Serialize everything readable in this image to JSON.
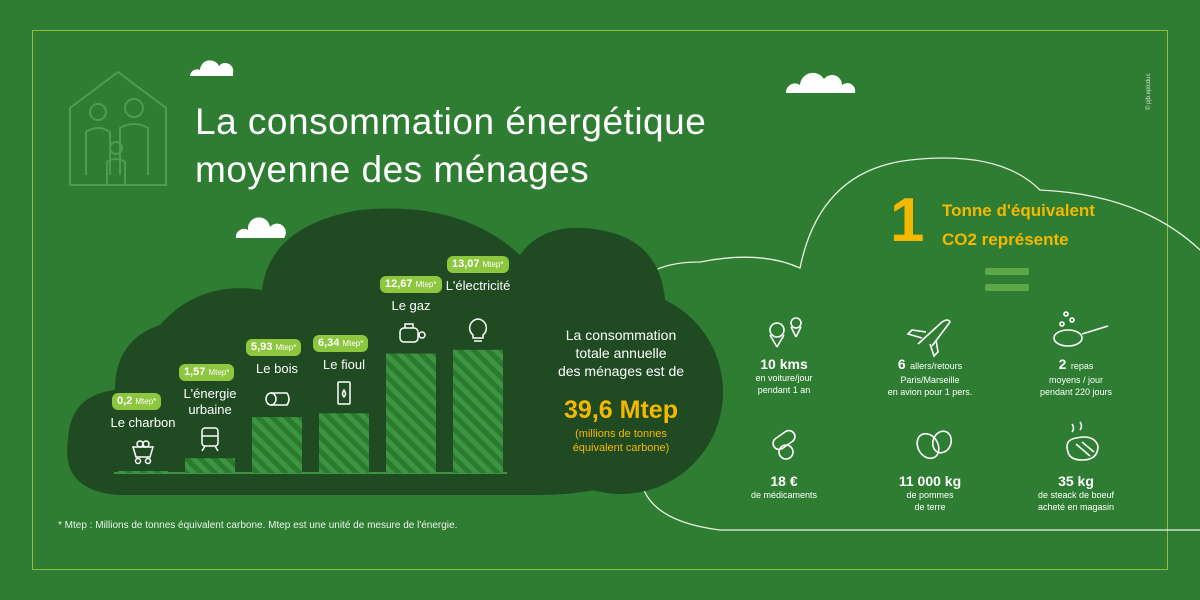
{
  "title": {
    "line1": "La consommation énergétique",
    "line2": "moyenne des ménages"
  },
  "copyright": "© pjb.epicduc",
  "chart_data": {
    "type": "bar",
    "categories": [
      "Le charbon",
      "L'énergie urbaine",
      "Le bois",
      "Le fioul",
      "Le gaz",
      "L'électricité"
    ],
    "values": [
      0.2,
      1.57,
      5.93,
      6.34,
      12.67,
      13.07
    ],
    "value_labels": [
      "0,2",
      "1,57",
      "5,93",
      "6,34",
      "12,67",
      "13,07"
    ],
    "unit_label": "Mtep*",
    "title": "",
    "xlabel": "",
    "ylabel": "",
    "ylim": [
      0,
      14
    ],
    "grid": false,
    "legend": "none",
    "icons": [
      "coal-cart-icon",
      "tram-icon",
      "log-icon",
      "oil-barrel-icon",
      "gas-tank-icon",
      "light-bulb-icon"
    ]
  },
  "total": {
    "text_line1": "La consommation",
    "text_line2": "totale annuelle",
    "text_line3": "des ménages est de",
    "value": "39,6 Mtep",
    "sub_line1": "(millions de tonnes",
    "sub_line2": "équivalent carbone)"
  },
  "co2": {
    "number": "1",
    "title_line1": "Tonne d'équivalent",
    "title_line2": "CO2 représente",
    "items": [
      {
        "icon": "map-pin-icon",
        "value": "10 kms",
        "desc1": "en voiture/jour",
        "desc2": "pendant 1 an"
      },
      {
        "icon": "airplane-icon",
        "value": "6",
        "value_suffix": "allers/retours",
        "desc1": "Paris/Marseille",
        "desc2": "en avion pour 1 pers."
      },
      {
        "icon": "frying-pan-icon",
        "value": "2",
        "value_suffix": "repas",
        "desc1": "moyens / jour",
        "desc2": "pendant 220 jours"
      },
      {
        "icon": "pills-icon",
        "value": "18 €",
        "desc1": "de médicaments",
        "desc2": ""
      },
      {
        "icon": "potato-icon",
        "value": "11 000 kg",
        "desc1": "de pommes",
        "desc2": "de terre"
      },
      {
        "icon": "steak-icon",
        "value": "35 kg",
        "desc1": "de steack de boeuf",
        "desc2": "acheté en magasin"
      }
    ]
  },
  "footnote": "* Mtep : Millions de tonnes équivalent carbone. Mtep est une unité de mesure de l'énergie.",
  "colors": {
    "background": "#2e7d32",
    "dark_cloud": "#1f4a22",
    "bar_light": "#3a8a3e",
    "bar_dark": "#2a6e2d",
    "pill": "#8dc63f",
    "accent": "#f5b800"
  }
}
